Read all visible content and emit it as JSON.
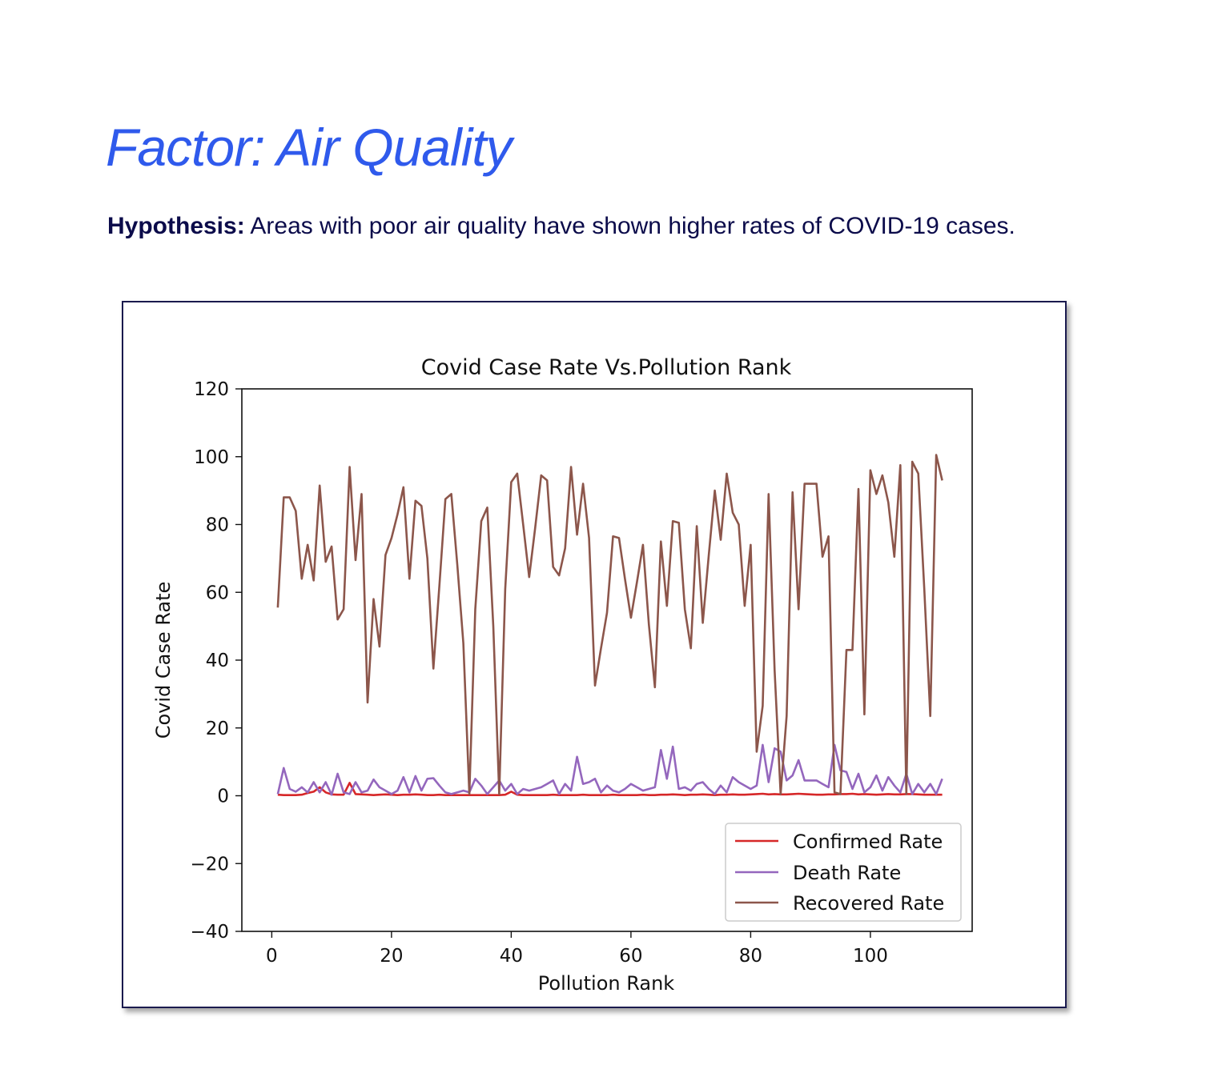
{
  "slide": {
    "title": "Factor: Air Quality",
    "hypothesis_label": "Hypothesis:",
    "hypothesis_text": " Areas with poor air quality have shown higher rates of COVID-19 cases."
  },
  "colors": {
    "title": "#2f5aec",
    "text": "#0b0b4a",
    "confirmed": "#d62728",
    "death": "#9467bd",
    "recovered": "#8c564b"
  },
  "chart_data": {
    "type": "line",
    "title": "Covid Case Rate Vs.Pollution Rank",
    "xlabel": "Pollution Rank",
    "ylabel": "Covid Case Rate",
    "xlim": [
      -5,
      117
    ],
    "ylim": [
      -40,
      120
    ],
    "x_ticks": [
      0,
      20,
      40,
      60,
      80,
      100
    ],
    "y_ticks": [
      -40,
      -20,
      0,
      20,
      40,
      60,
      80,
      100,
      120
    ],
    "y_tick_labels": [
      "−40",
      "−20",
      "0",
      "20",
      "40",
      "60",
      "80",
      "100",
      "120"
    ],
    "grid": false,
    "legend_position": "lower right",
    "x": [
      1,
      2,
      3,
      4,
      5,
      6,
      7,
      8,
      9,
      10,
      11,
      12,
      13,
      14,
      15,
      16,
      17,
      18,
      19,
      20,
      21,
      22,
      23,
      24,
      25,
      26,
      27,
      28,
      29,
      30,
      31,
      32,
      33,
      34,
      35,
      36,
      37,
      38,
      39,
      40,
      41,
      42,
      43,
      44,
      45,
      46,
      47,
      48,
      49,
      50,
      51,
      52,
      53,
      54,
      55,
      56,
      57,
      58,
      59,
      60,
      61,
      62,
      63,
      64,
      65,
      66,
      67,
      68,
      69,
      70,
      71,
      72,
      73,
      74,
      75,
      76,
      77,
      78,
      79,
      80,
      81,
      82,
      83,
      84,
      85,
      86,
      87,
      88,
      89,
      90,
      91,
      92,
      93,
      94,
      95,
      96,
      97,
      98,
      99,
      100,
      101,
      102,
      103,
      104,
      105,
      106,
      107,
      108,
      109,
      110,
      111,
      112
    ],
    "series": [
      {
        "name": "Confirmed Rate",
        "color": "#d62728",
        "values": [
          0.3,
          0.2,
          0.2,
          0.2,
          0.3,
          0.8,
          1.2,
          2.5,
          1.0,
          0.4,
          0.3,
          0.3,
          3.8,
          0.5,
          0.4,
          0.3,
          0.2,
          0.3,
          0.4,
          0.3,
          0.2,
          0.3,
          0.3,
          0.4,
          0.3,
          0.2,
          0.2,
          0.3,
          0.2,
          0.2,
          0.2,
          0.2,
          0.2,
          0.2,
          0.2,
          0.2,
          0.2,
          0.2,
          0.3,
          1.2,
          0.3,
          0.2,
          0.2,
          0.2,
          0.2,
          0.2,
          0.3,
          0.2,
          0.2,
          0.2,
          0.2,
          0.3,
          0.2,
          0.2,
          0.2,
          0.2,
          0.3,
          0.2,
          0.2,
          0.2,
          0.2,
          0.3,
          0.2,
          0.2,
          0.3,
          0.3,
          0.4,
          0.3,
          0.2,
          0.3,
          0.3,
          0.4,
          0.3,
          0.2,
          0.3,
          0.3,
          0.4,
          0.3,
          0.3,
          0.4,
          0.5,
          0.6,
          0.4,
          0.5,
          0.4,
          0.4,
          0.5,
          0.6,
          0.5,
          0.4,
          0.3,
          0.3,
          0.4,
          0.4,
          0.5,
          0.5,
          0.6,
          0.4,
          0.5,
          0.4,
          0.3,
          0.4,
          0.5,
          0.4,
          0.4,
          0.5,
          0.5,
          0.4,
          0.3,
          0.3,
          0.3,
          0.3
        ]
      },
      {
        "name": "Death Rate",
        "color": "#9467bd",
        "values": [
          0.5,
          8.2,
          2.0,
          1.2,
          2.5,
          1.0,
          4.0,
          1.0,
          4.0,
          0.3,
          6.5,
          1.0,
          0.5,
          4.0,
          1.0,
          1.5,
          4.8,
          2.5,
          1.5,
          0.5,
          1.5,
          5.5,
          1.0,
          5.8,
          1.5,
          5.0,
          5.2,
          3.0,
          1.0,
          0.5,
          1.0,
          1.5,
          1.0,
          5.0,
          3.0,
          0.5,
          2.5,
          4.5,
          1.5,
          3.5,
          0.5,
          2.0,
          1.5,
          2.0,
          2.5,
          3.5,
          4.5,
          0.5,
          3.5,
          1.5,
          11.5,
          3.5,
          4.0,
          5.0,
          1.0,
          3.0,
          1.5,
          1.0,
          2.0,
          3.5,
          2.5,
          1.5,
          2.0,
          2.5,
          13.5,
          5.0,
          14.5,
          2.0,
          2.5,
          1.5,
          3.5,
          4.0,
          2.0,
          0.5,
          3.0,
          1.0,
          5.5,
          4.0,
          3.0,
          2.0,
          3.0,
          15.0,
          4.0,
          14.0,
          13.0,
          4.5,
          6.0,
          10.5,
          4.5,
          4.5,
          4.5,
          3.5,
          2.5,
          15.0,
          7.5,
          7.0,
          2.0,
          6.5,
          1.0,
          2.5,
          6.0,
          1.5,
          5.5,
          3.0,
          1.0,
          6.5,
          0.5,
          3.5,
          1.0,
          3.5,
          0.5,
          5.0
        ]
      },
      {
        "name": "Recovered Rate",
        "color": "#8c564b",
        "values": [
          55.5,
          88.0,
          88.0,
          84.0,
          64.0,
          74.0,
          63.5,
          91.5,
          69.0,
          73.5,
          52.0,
          55.0,
          97.0,
          69.5,
          89.0,
          27.5,
          58.0,
          44.0,
          71.0,
          76.0,
          83.0,
          91.0,
          64.0,
          87.0,
          85.5,
          70.0,
          37.5,
          62.0,
          87.5,
          89.0,
          68.0,
          45.0,
          0.5,
          55.0,
          81.0,
          85.0,
          50.0,
          0.5,
          61.0,
          92.5,
          95.0,
          80.0,
          64.5,
          79.0,
          94.5,
          93.0,
          67.5,
          65.0,
          73.0,
          97.0,
          77.0,
          92.0,
          76.0,
          32.5,
          43.5,
          54.0,
          76.5,
          76.0,
          64.0,
          52.5,
          63.0,
          74.0,
          50.5,
          32.0,
          75.0,
          56.0,
          81.0,
          80.5,
          55.0,
          43.5,
          79.5,
          51.0,
          71.0,
          90.0,
          75.5,
          95.0,
          83.5,
          80.0,
          56.0,
          74.0,
          13.0,
          26.5,
          89.0,
          37.0,
          0.5,
          23.5,
          89.5,
          55.0,
          92.0,
          92.0,
          92.0,
          70.5,
          76.5,
          1.0,
          0.5,
          43.0,
          43.0,
          90.5,
          24.0,
          96.0,
          89.0,
          94.5,
          86.5,
          70.5,
          97.5,
          0.5,
          98.5,
          95.0,
          61.0,
          23.5,
          100.5,
          93.0
        ]
      }
    ]
  }
}
